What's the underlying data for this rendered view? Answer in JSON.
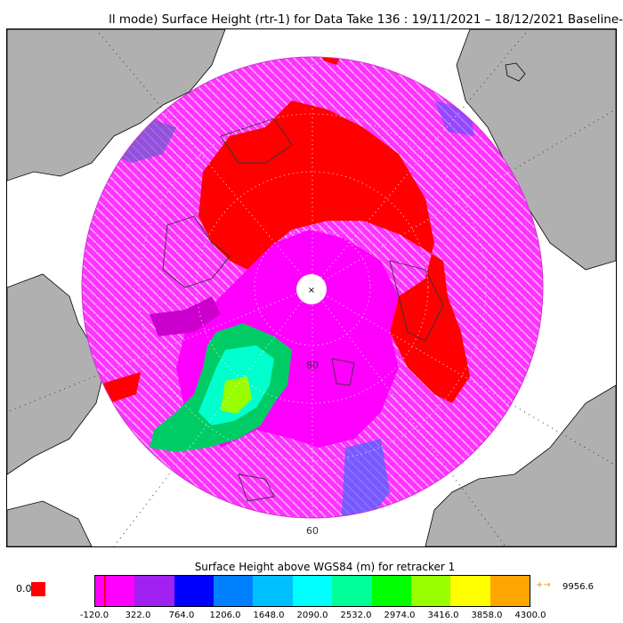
{
  "title": "ll mode) Surface Height (rtr-1) for Data Take 136 : 19/11/2021 – 18/12/2021 Baseline-",
  "map": {
    "lat_label_inner": "80",
    "lat_label_outer": "60",
    "pole_marker": "×",
    "land_color": "#b0b0b0",
    "sea_color": "#ffffff",
    "grid_color": "#555555"
  },
  "colorbar": {
    "title": "Surface Height above WGS84 (m) for retracker 1",
    "nodata_label": "0.0",
    "nodata_color": "#ff0000",
    "overflow_arrow": "+→",
    "overflow_value": "9956.6",
    "ticks": [
      "-120.0",
      "322.0",
      "764.0",
      "1206.0",
      "1648.0",
      "2090.0",
      "2532.0",
      "2974.0",
      "3416.0",
      "3858.0",
      "4300.0"
    ],
    "colors": [
      "#ff00ff",
      "#a020f0",
      "#0000ff",
      "#0080ff",
      "#00c0ff",
      "#00ffff",
      "#00ff99",
      "#00ff00",
      "#99ff00",
      "#ffff00",
      "#ffa500"
    ]
  }
}
